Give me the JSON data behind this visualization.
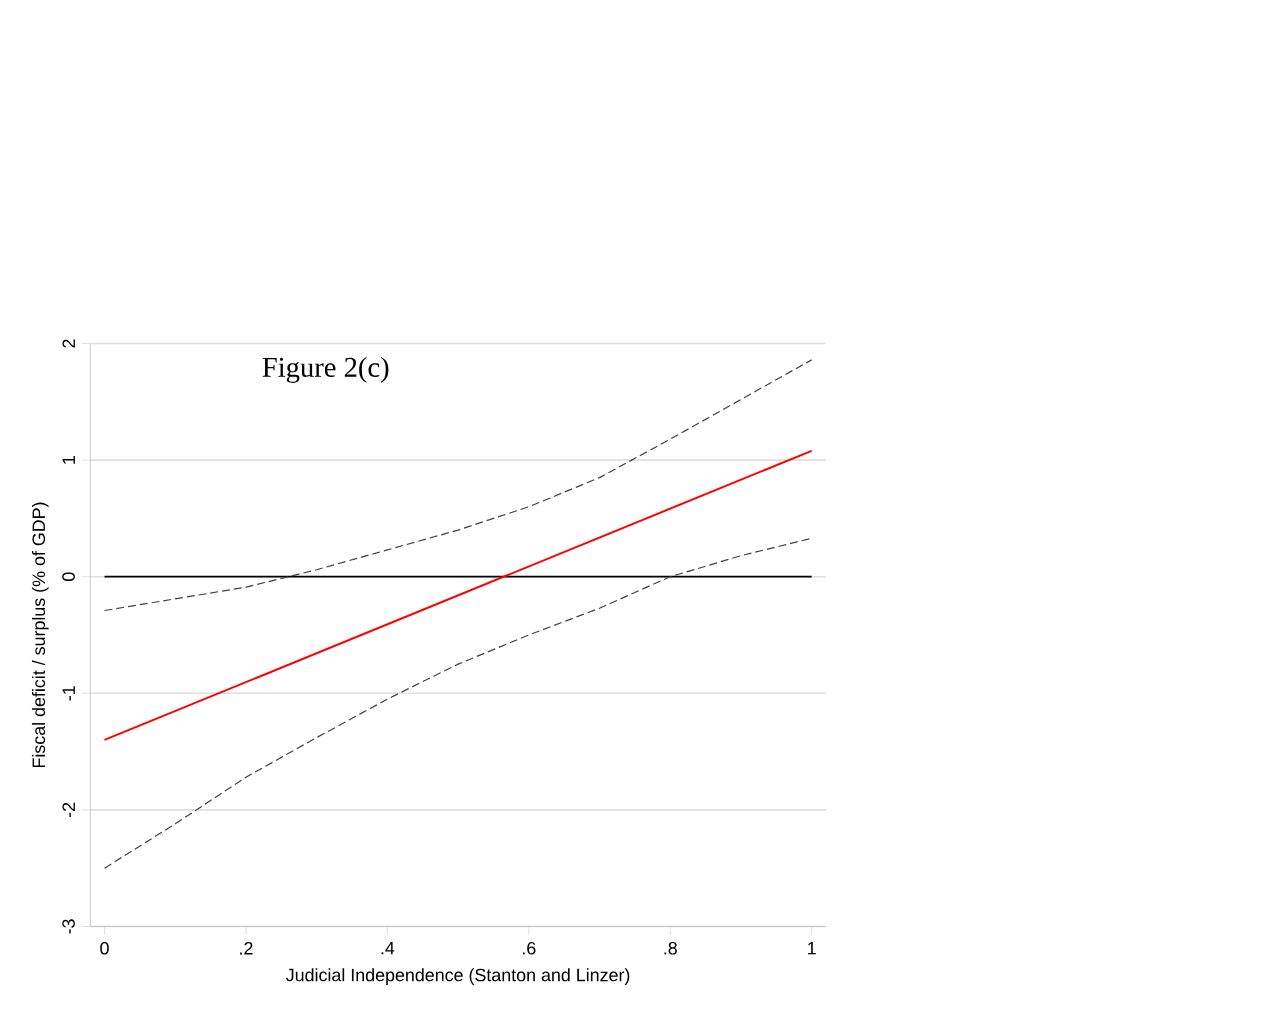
{
  "chart_data": {
    "type": "line",
    "title": "Figure 2(c)",
    "xlabel": "Judicial Independence (Stanton and Linzer)",
    "ylabel": "Fiscal deficit / surplus (% of GDP)",
    "xlim": [
      0,
      1
    ],
    "ylim": [
      -3,
      2
    ],
    "xticks": [
      0,
      {
        "value": 0.2,
        "label": ".2"
      },
      {
        "value": 0.4,
        "label": ".4"
      },
      {
        "value": 0.6,
        "label": ".6"
      },
      {
        "value": 0.8,
        "label": ".8"
      },
      1
    ],
    "yticks": [
      -3,
      -2,
      -1,
      0,
      1,
      2
    ],
    "grid": "y",
    "ref_lines": [
      {
        "axis": "y",
        "value": 0,
        "color": "#000000"
      }
    ],
    "series": [
      {
        "color": "#ff0000",
        "line_style": "solid",
        "x": [
          0,
          1
        ],
        "values": [
          -1.4,
          1.08
        ]
      },
      {
        "color": "#404040",
        "line_style": "dashed",
        "x": [
          0,
          0.1,
          0.2,
          0.3,
          0.4,
          0.5,
          0.6,
          0.7,
          0.8,
          0.9,
          1
        ],
        "values": [
          -0.29,
          -0.19,
          -0.09,
          0.06,
          0.23,
          0.4,
          0.6,
          0.85,
          1.18,
          1.52,
          1.86
        ]
      },
      {
        "color": "#404040",
        "line_style": "dashed",
        "x": [
          0,
          0.1,
          0.2,
          0.3,
          0.4,
          0.5,
          0.6,
          0.7,
          0.8,
          0.9,
          1
        ],
        "values": [
          -2.5,
          -2.12,
          -1.72,
          -1.38,
          -1.05,
          -0.75,
          -0.5,
          -0.27,
          0.0,
          0.18,
          0.33
        ]
      }
    ]
  }
}
